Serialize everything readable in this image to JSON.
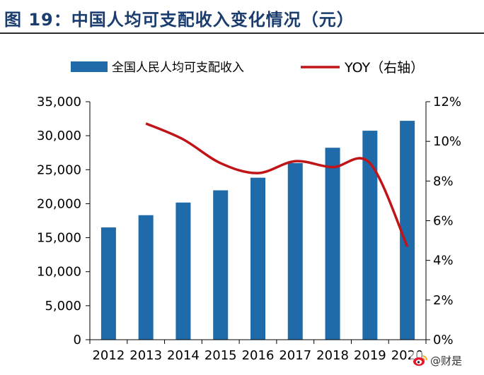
{
  "figure": {
    "title": "图 19：中国人均可支配收入变化情况（元）"
  },
  "watermark": {
    "text": "@财是",
    "icon": "sina-weibo-icon"
  },
  "colors": {
    "bar": "#1f6aa8",
    "line": "#c01418",
    "axis": "#000000",
    "title": "#1a3c6e"
  },
  "chart_data": {
    "type": "bar",
    "categories": [
      "2012",
      "2013",
      "2014",
      "2015",
      "2016",
      "2017",
      "2018",
      "2019",
      "2020"
    ],
    "series": [
      {
        "name": "全国人民人均可支配收入",
        "type": "bar",
        "axis": "left",
        "values": [
          16510,
          18311,
          20167,
          21966,
          23821,
          25974,
          28228,
          30733,
          32189
        ]
      },
      {
        "name": "YOY（右轴）",
        "type": "line",
        "axis": "right",
        "values": [
          null,
          10.9,
          10.1,
          8.9,
          8.4,
          9.0,
          8.7,
          8.9,
          4.7
        ]
      }
    ],
    "y_left": {
      "lim": [
        0,
        35000
      ],
      "ticks": [
        0,
        5000,
        10000,
        15000,
        20000,
        25000,
        30000,
        35000
      ],
      "tick_labels": [
        "0",
        "5,000",
        "10,000",
        "15,000",
        "20,000",
        "25,000",
        "30,000",
        "35,000"
      ]
    },
    "y_right": {
      "lim": [
        0,
        12
      ],
      "ticks": [
        0,
        2,
        4,
        6,
        8,
        10,
        12
      ],
      "tick_labels": [
        "0%",
        "2%",
        "4%",
        "6%",
        "8%",
        "10%",
        "12%"
      ]
    },
    "legend": [
      "全国人民人均可支配收入",
      "YOY（右轴）"
    ],
    "legend_position": "top",
    "grid": false
  }
}
